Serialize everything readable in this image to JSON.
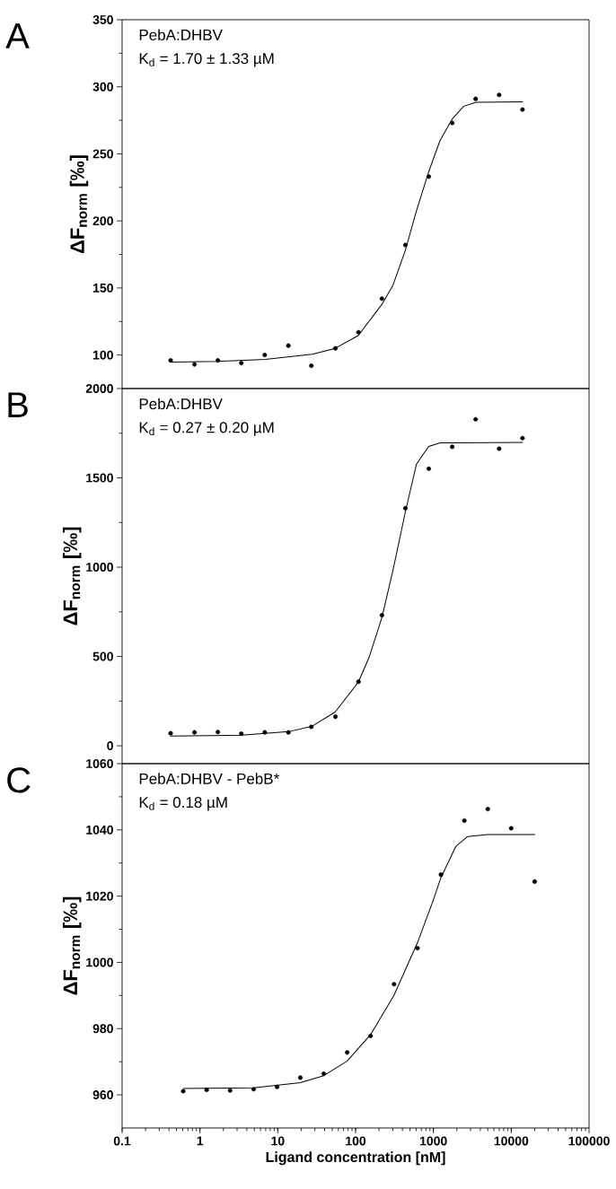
{
  "chart_data": [
    {
      "type": "scatter",
      "title": "A",
      "ylabel": "**ΔF$_{norm}$ [‰]**",
      "annotations": [
        "PebA:DHBV",
        "K$_{d}$ = 1.70 ± 1.33 µM"
      ],
      "log": "x",
      "xlim": [
        0.1,
        100000
      ],
      "xticks": [
        0.1,
        1,
        10,
        100,
        1000,
        10000,
        100000
      ],
      "ylim": [
        75,
        350
      ],
      "yticks": [
        100,
        150,
        200,
        250,
        300,
        350
      ],
      "tick_labels": "y",
      "series": [
        {
          "type": "scatter",
          "color": "#000000",
          "marker": "circle",
          "x": [
            0.42,
            0.85,
            1.7,
            3.4,
            6.8,
            13.7,
            27,
            55,
            109,
            218,
            436,
            872,
            1745,
            3490,
            6980,
            13960
          ],
          "values": [
            96,
            93,
            96,
            94,
            100,
            107,
            92,
            105,
            117,
            142,
            182,
            233,
            273,
            291,
            294,
            283
          ]
        },
        {
          "type": "line",
          "color": "#000000",
          "marker": "none",
          "line_style": "solid",
          "x": [
            0.42,
            1.71,
            6.9,
            27.8,
            54.6,
            108,
            218,
            302,
            438,
            606,
            869,
            1218,
            1746,
            2449,
            3508,
            13990
          ],
          "values": [
            94.8,
            95.3,
            96.8,
            100.6,
            105,
            114.5,
            137.8,
            152,
            178.5,
            207.6,
            236.6,
            260,
            276,
            285.5,
            288.4,
            288.7
          ]
        }
      ]
    },
    {
      "type": "scatter",
      "title": "B",
      "ylabel": "**ΔF$_{norm}$ [‰]**",
      "annotations": [
        "PebA:DHBV",
        "K$_{d}$ = 0.27 ± 0.20 µM"
      ],
      "log": "x",
      "xlim": [
        0.1,
        100000
      ],
      "xticks": [
        0.1,
        1,
        10,
        100,
        1000,
        10000,
        100000
      ],
      "ylim": [
        -100,
        2000
      ],
      "yticks": [
        0,
        500,
        1000,
        1500,
        2000
      ],
      "tick_labels": "y",
      "series": [
        {
          "type": "scatter",
          "color": "#000000",
          "marker": "circle",
          "x": [
            0.42,
            0.85,
            1.7,
            3.4,
            6.8,
            13.7,
            27,
            55,
            109,
            218,
            436,
            872,
            1745,
            3490,
            6980,
            13960
          ],
          "values": [
            70,
            75,
            77,
            68,
            75,
            75,
            106,
            163,
            359,
            731,
            1330,
            1551,
            1674,
            1828,
            1663,
            1722
          ]
        },
        {
          "type": "line",
          "color": "#000000",
          "marker": "none",
          "line_style": "solid",
          "x": [
            0.42,
            3.43,
            13.8,
            27.8,
            54.6,
            108,
            150,
            218,
            302,
            438,
            606,
            869,
            1218,
            13990
          ],
          "values": [
            55,
            59,
            79,
            110,
            189,
            355,
            498,
            718,
            982,
            1313,
            1577,
            1676,
            1696,
            1698
          ]
        }
      ]
    },
    {
      "type": "scatter",
      "title": "C",
      "ylabel": "**ΔF$_{norm}$ [‰]**",
      "xlabel": "Ligand concentration [nM]",
      "annotations": [
        "PebA:DHBV - PebB*",
        "K$_{d}$ = 0.18 µM"
      ],
      "log": "x",
      "xlim": [
        0.1,
        100000
      ],
      "xticks": [
        0.1,
        1,
        10,
        100,
        1000,
        10000,
        100000
      ],
      "ylim": [
        950,
        1060
      ],
      "yticks": [
        960,
        980,
        1000,
        1020,
        1040,
        1060
      ],
      "series": [
        {
          "type": "scatter",
          "color": "#000000",
          "marker": "circle",
          "x": [
            0.61,
            1.22,
            2.44,
            4.9,
            9.8,
            19.5,
            39,
            78,
            156,
            312,
            625,
            1250,
            2500,
            5000,
            10000,
            20000
          ],
          "values": [
            961.1,
            961.5,
            961.3,
            961.7,
            962.4,
            965.2,
            966.4,
            972.8,
            977.8,
            993.4,
            1004.3,
            1026.5,
            1042.8,
            1046.3,
            1040.5,
            1024.4
          ]
        },
        {
          "type": "line",
          "color": "#000000",
          "marker": "none",
          "line_style": "solid",
          "x": [
            0.61,
            4.9,
            19.5,
            39,
            78,
            156,
            312,
            625,
            966,
            1250,
            1941,
            2750,
            5000,
            20000
          ],
          "values": [
            961.9,
            962.1,
            963.7,
            965.8,
            970.2,
            978.2,
            990.1,
            1006,
            1017.9,
            1025.6,
            1035,
            1038,
            1038.6,
            1038.6
          ]
        }
      ]
    }
  ]
}
